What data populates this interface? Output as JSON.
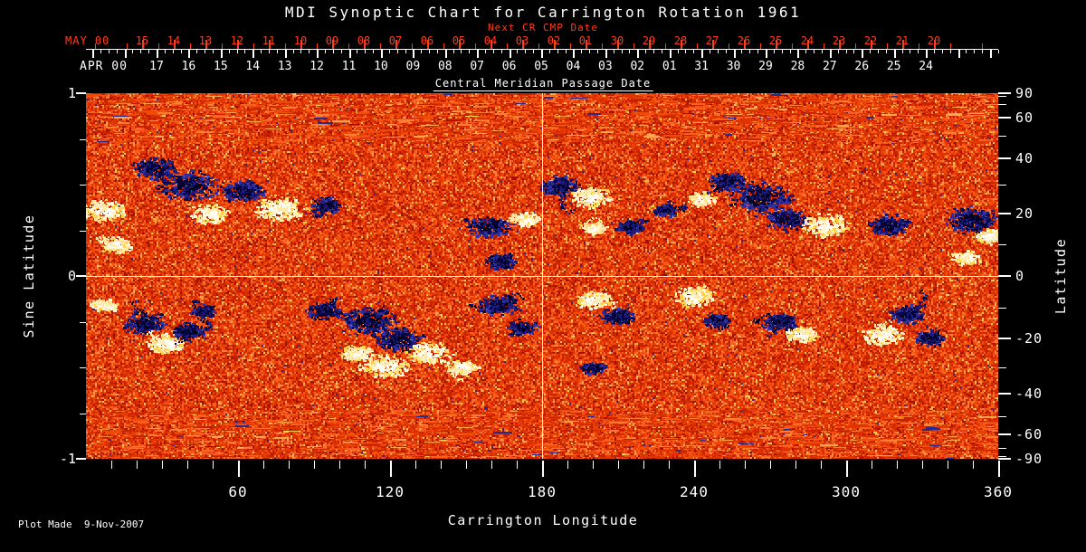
{
  "title": "MDI Synoptic Chart for Carrington Rotation 1961",
  "footer": {
    "plot_made": "Plot Made  9-Nov-2007"
  },
  "colors": {
    "background": "#000000",
    "text": "#ffffff",
    "accent_red": "#ff3e1a"
  },
  "chart_data": {
    "type": "heatmap",
    "instrument": "MDI",
    "carrington_rotation": 1961,
    "title": "MDI Synoptic Chart for Carrington Rotation 1961",
    "subtitle_top": "Next CR CMP Date",
    "top_axis_red": {
      "month_label": "MAY 00",
      "tick_labels": [
        "15",
        "14",
        "13",
        "12",
        "11",
        "10",
        "09",
        "08",
        "07",
        "06",
        "05",
        "04",
        "03",
        "02",
        "01",
        "30",
        "29",
        "28",
        "27",
        "26",
        "25",
        "24",
        "23",
        "22",
        "21",
        "20"
      ]
    },
    "top_axis_white": {
      "month_label": "APR 00",
      "axis_label": "Central Meridian Passage Date",
      "tick_labels": [
        "17",
        "16",
        "15",
        "14",
        "13",
        "12",
        "11",
        "10",
        "09",
        "08",
        "07",
        "06",
        "05",
        "04",
        "03",
        "02",
        "01",
        "31",
        "30",
        "29",
        "28",
        "27",
        "26",
        "25",
        "24"
      ]
    },
    "x_axis": {
      "label": "Carrington Longitude",
      "tick_labels": [
        "60",
        "120",
        "180",
        "240",
        "300",
        "360"
      ],
      "labeled_longitudes": [
        60,
        120,
        180,
        240,
        300,
        360
      ],
      "minor_tick_step_deg": 10,
      "range": [
        0,
        360
      ]
    },
    "y_axis_left": {
      "label": "Sine Latitude",
      "tick_labels": [
        "1",
        "0",
        "-1"
      ],
      "labeled_values": [
        1,
        0,
        -1
      ],
      "minor_tick_values": [
        0.75,
        0.5,
        0.25,
        -0.25,
        -0.5,
        -0.75
      ],
      "range": [
        -1,
        1
      ]
    },
    "y_axis_right": {
      "label": "Latitude",
      "tick_labels": [
        "90",
        "60",
        "40",
        "20",
        "0",
        "-20",
        "-40",
        "-60",
        "-90"
      ],
      "labeled_latitudes": [
        90,
        60,
        40,
        20,
        0,
        -20,
        -40,
        -60,
        -90
      ],
      "minor_tick_step_deg": 10
    },
    "reference_lines": {
      "vertical_longitude_deg": 180,
      "horizontal_sine_latitude": 0
    },
    "palette": {
      "quiet_sun": [
        "#9e1300",
        "#c92100",
        "#e03400",
        "#ef4a07",
        "#fa5f1d",
        "#ff7e33",
        "#ffa64d",
        "#ffd24d"
      ],
      "negative_polarity": [
        "#000018",
        "#000030",
        "#0a0a4a",
        "#1c1c78",
        "#3030a0"
      ],
      "positive_polarity": [
        "#ffffff",
        "#fffef2",
        "#fff8dc",
        "#ffe9a8",
        "#ffd24d"
      ],
      "navy_speckle": "#2a2a8c"
    },
    "active_regions": [
      {
        "lon": 7.1,
        "slat": 0.36,
        "pol": "pos",
        "size": 16
      },
      {
        "lon": 11.4,
        "slat": 0.17,
        "pol": "pos",
        "size": 12
      },
      {
        "lon": 26.8,
        "slat": 0.59,
        "pol": "neg",
        "size": 16
      },
      {
        "lon": 40.0,
        "slat": 0.5,
        "pol": "neg",
        "size": 22
      },
      {
        "lon": 48.6,
        "slat": 0.34,
        "pol": "pos",
        "size": 14
      },
      {
        "lon": 61.4,
        "slat": 0.47,
        "pol": "neg",
        "size": 16
      },
      {
        "lon": 76.4,
        "slat": 0.37,
        "pol": "pos",
        "size": 18
      },
      {
        "lon": 95.0,
        "slat": 0.39,
        "pol": "neg",
        "size": 11
      },
      {
        "lon": 158.6,
        "slat": 0.27,
        "pol": "neg",
        "size": 15
      },
      {
        "lon": 163.6,
        "slat": 0.08,
        "pol": "neg",
        "size": 11
      },
      {
        "lon": 173.6,
        "slat": 0.31,
        "pol": "pos",
        "size": 10
      },
      {
        "lon": 187.1,
        "slat": 0.49,
        "pol": "neg",
        "size": 14
      },
      {
        "lon": 198.6,
        "slat": 0.43,
        "pol": "pos",
        "size": 15
      },
      {
        "lon": 200.0,
        "slat": 0.26,
        "pol": "pos",
        "size": 9
      },
      {
        "lon": 214.3,
        "slat": 0.27,
        "pol": "neg",
        "size": 10
      },
      {
        "lon": 228.6,
        "slat": 0.36,
        "pol": "neg",
        "size": 9
      },
      {
        "lon": 242.9,
        "slat": 0.42,
        "pol": "pos",
        "size": 10
      },
      {
        "lon": 252.9,
        "slat": 0.52,
        "pol": "neg",
        "size": 13
      },
      {
        "lon": 266.4,
        "slat": 0.43,
        "pol": "neg",
        "size": 24
      },
      {
        "lon": 276.8,
        "slat": 0.31,
        "pol": "neg",
        "size": 16
      },
      {
        "lon": 291.4,
        "slat": 0.28,
        "pol": "pos",
        "size": 17
      },
      {
        "lon": 316.4,
        "slat": 0.28,
        "pol": "neg",
        "size": 15
      },
      {
        "lon": 348.6,
        "slat": 0.31,
        "pol": "neg",
        "size": 19
      },
      {
        "lon": 357.1,
        "slat": 0.22,
        "pol": "pos",
        "size": 12
      },
      {
        "lon": 347.1,
        "slat": 0.1,
        "pol": "pos",
        "size": 10
      },
      {
        "lon": 7.1,
        "slat": -0.16,
        "pol": "pos",
        "size": 10
      },
      {
        "lon": 22.9,
        "slat": -0.26,
        "pol": "neg",
        "size": 15
      },
      {
        "lon": 31.4,
        "slat": -0.37,
        "pol": "pos",
        "size": 14
      },
      {
        "lon": 40.0,
        "slat": -0.3,
        "pol": "neg",
        "size": 12
      },
      {
        "lon": 46.4,
        "slat": -0.19,
        "pol": "neg",
        "size": 9
      },
      {
        "lon": 94.3,
        "slat": -0.19,
        "pol": "neg",
        "size": 13
      },
      {
        "lon": 110.7,
        "slat": -0.24,
        "pol": "neg",
        "size": 22
      },
      {
        "lon": 123.6,
        "slat": -0.34,
        "pol": "neg",
        "size": 18
      },
      {
        "lon": 117.9,
        "slat": -0.49,
        "pol": "pos",
        "size": 18
      },
      {
        "lon": 135.0,
        "slat": -0.42,
        "pol": "pos",
        "size": 16
      },
      {
        "lon": 106.4,
        "slat": -0.42,
        "pol": "pos",
        "size": 11
      },
      {
        "lon": 148.6,
        "slat": -0.5,
        "pol": "pos",
        "size": 12
      },
      {
        "lon": 162.9,
        "slat": -0.16,
        "pol": "neg",
        "size": 15
      },
      {
        "lon": 172.1,
        "slat": -0.28,
        "pol": "neg",
        "size": 11
      },
      {
        "lon": 200.0,
        "slat": -0.13,
        "pol": "pos",
        "size": 13
      },
      {
        "lon": 209.3,
        "slat": -0.22,
        "pol": "neg",
        "size": 12
      },
      {
        "lon": 200.0,
        "slat": -0.5,
        "pol": "neg",
        "size": 9
      },
      {
        "lon": 240.0,
        "slat": -0.11,
        "pol": "pos",
        "size": 15
      },
      {
        "lon": 248.6,
        "slat": -0.24,
        "pol": "neg",
        "size": 10
      },
      {
        "lon": 273.6,
        "slat": -0.25,
        "pol": "neg",
        "size": 13
      },
      {
        "lon": 282.1,
        "slat": -0.32,
        "pol": "pos",
        "size": 12
      },
      {
        "lon": 314.3,
        "slat": -0.32,
        "pol": "pos",
        "size": 15
      },
      {
        "lon": 323.6,
        "slat": -0.21,
        "pol": "neg",
        "size": 13
      },
      {
        "lon": 332.9,
        "slat": -0.34,
        "pol": "neg",
        "size": 11
      }
    ]
  }
}
